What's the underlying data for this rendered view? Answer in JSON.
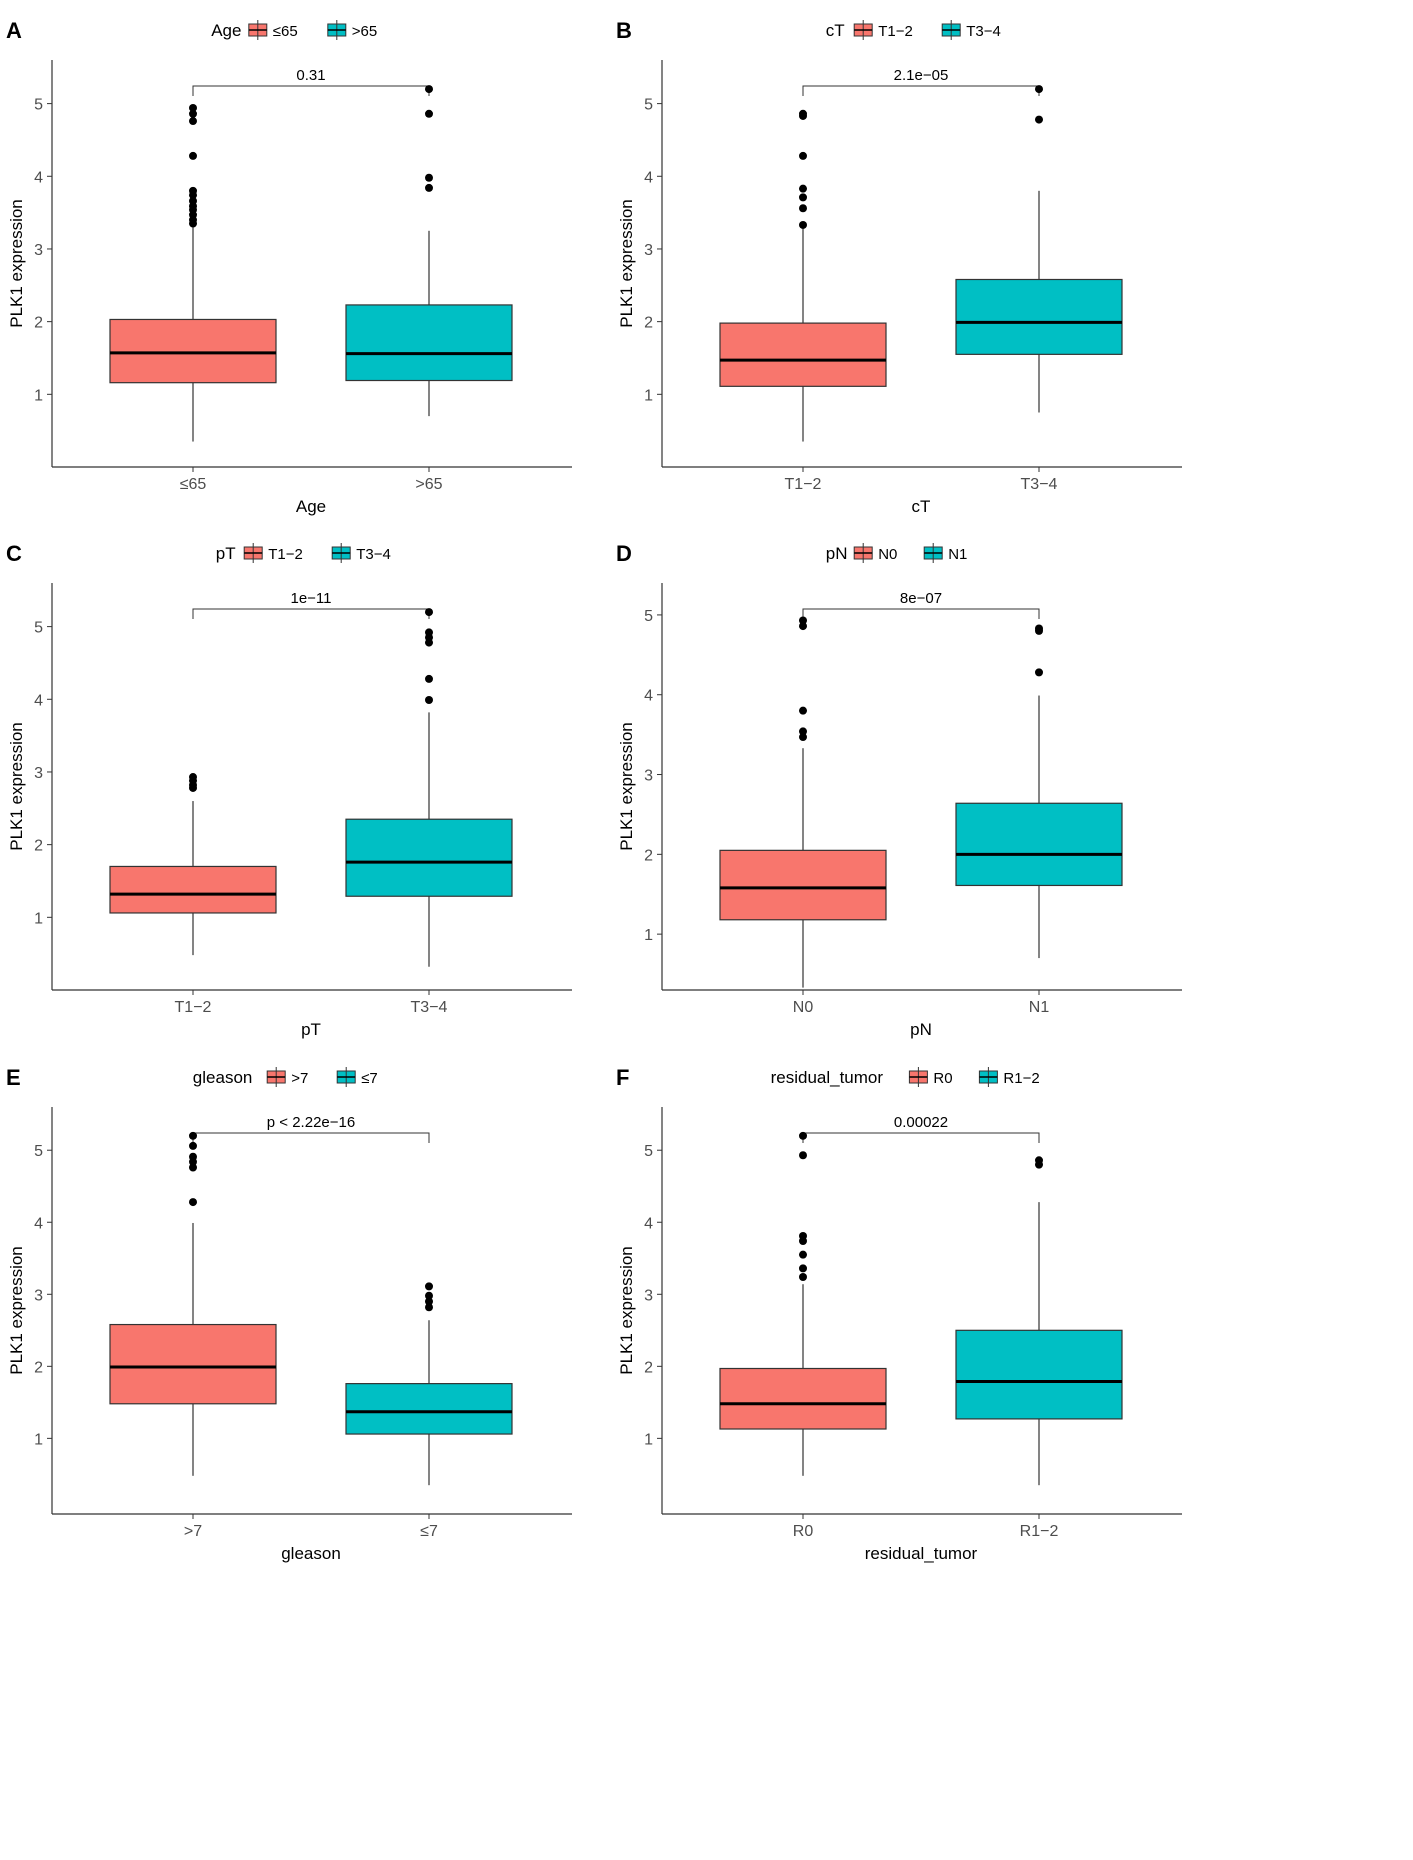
{
  "colors": {
    "low_group": "#F8766D",
    "high_group": "#00BFC4",
    "ink": "#000000",
    "axis": "#333333"
  },
  "chart_data": [
    {
      "panel_label": "A",
      "type": "box",
      "legend_title": "Age",
      "groups": [
        "≤65",
        ">65"
      ],
      "xlabel": "Age",
      "ylabel": "PLK1 expression",
      "ylim": [
        0.0,
        5.6
      ],
      "yticks": [
        1,
        2,
        3,
        4,
        5
      ],
      "p_value": "0.31",
      "boxes": [
        {
          "category": "≤65",
          "whisker_low": 0.35,
          "q1": 1.16,
          "median": 1.57,
          "q3": 2.03,
          "whisker_high": 3.35,
          "outliers": [
            3.35,
            3.4,
            3.47,
            3.54,
            3.59,
            3.66,
            3.74,
            3.8,
            4.28,
            4.76,
            4.86,
            4.94
          ]
        },
        {
          "category": ">65",
          "whisker_low": 0.7,
          "q1": 1.19,
          "median": 1.56,
          "q3": 2.23,
          "whisker_high": 3.25,
          "outliers": [
            3.84,
            3.98,
            4.86,
            5.2
          ]
        }
      ]
    },
    {
      "panel_label": "B",
      "type": "box",
      "legend_title": "cT",
      "groups": [
        "T1−2",
        "T3−4"
      ],
      "xlabel": "cT",
      "ylabel": "PLK1 expression",
      "ylim": [
        0.0,
        5.6
      ],
      "yticks": [
        1,
        2,
        3,
        4,
        5
      ],
      "p_value": "2.1e−05",
      "boxes": [
        {
          "category": "T1−2",
          "whisker_low": 0.35,
          "q1": 1.11,
          "median": 1.47,
          "q3": 1.98,
          "whisker_high": 3.28,
          "outliers": [
            3.33,
            3.56,
            3.71,
            3.83,
            4.28,
            4.83,
            4.86
          ]
        },
        {
          "category": "T3−4",
          "whisker_low": 0.75,
          "q1": 1.55,
          "median": 1.99,
          "q3": 2.58,
          "whisker_high": 3.8,
          "outliers": [
            4.78,
            5.2
          ]
        }
      ]
    },
    {
      "panel_label": "C",
      "type": "box",
      "legend_title": "pT",
      "groups": [
        "T1−2",
        "T3−4"
      ],
      "xlabel": "pT",
      "ylabel": "PLK1 expression",
      "ylim": [
        0.0,
        5.6
      ],
      "yticks": [
        1,
        2,
        3,
        4,
        5
      ],
      "p_value": "1e−11",
      "boxes": [
        {
          "category": "T1−2",
          "whisker_low": 0.48,
          "q1": 1.06,
          "median": 1.32,
          "q3": 1.7,
          "whisker_high": 2.6,
          "outliers": [
            2.78,
            2.82,
            2.88,
            2.93
          ]
        },
        {
          "category": "T3−4",
          "whisker_low": 0.32,
          "q1": 1.29,
          "median": 1.76,
          "q3": 2.35,
          "whisker_high": 3.82,
          "outliers": [
            3.99,
            4.28,
            4.78,
            4.85,
            4.92,
            5.2
          ]
        }
      ]
    },
    {
      "panel_label": "D",
      "type": "box",
      "legend_title": "pN",
      "groups": [
        "N0",
        "N1"
      ],
      "xlabel": "pN",
      "ylabel": "PLK1 expression",
      "ylim": [
        0.3,
        5.4
      ],
      "yticks": [
        1,
        2,
        3,
        4,
        5
      ],
      "p_value": "8e−07",
      "boxes": [
        {
          "category": "N0",
          "whisker_low": 0.33,
          "q1": 1.18,
          "median": 1.58,
          "q3": 2.05,
          "whisker_high": 3.33,
          "outliers": [
            3.47,
            3.54,
            3.8,
            4.86,
            4.93
          ]
        },
        {
          "category": "N1",
          "whisker_low": 0.7,
          "q1": 1.61,
          "median": 2.0,
          "q3": 2.64,
          "whisker_high": 3.99,
          "outliers": [
            4.28,
            4.8,
            4.83
          ]
        }
      ]
    },
    {
      "panel_label": "E",
      "type": "box",
      "legend_title": "gleason",
      "groups": [
        ">7",
        "≤7"
      ],
      "xlabel": "gleason",
      "ylabel": "PLK1 expression",
      "ylim": [
        -0.05,
        5.6
      ],
      "yticks": [
        1,
        2,
        3,
        4,
        5
      ],
      "p_value": "p < 2.22e−16",
      "boxes": [
        {
          "category": ">7",
          "whisker_low": 0.48,
          "q1": 1.48,
          "median": 1.99,
          "q3": 2.58,
          "whisker_high": 3.99,
          "outliers": [
            4.28,
            4.76,
            4.84,
            4.91,
            5.06,
            5.2
          ]
        },
        {
          "category": "≤7",
          "whisker_low": 0.35,
          "q1": 1.06,
          "median": 1.37,
          "q3": 1.76,
          "whisker_high": 2.64,
          "outliers": [
            2.82,
            2.9,
            2.98,
            3.11
          ]
        }
      ]
    },
    {
      "panel_label": "F",
      "type": "box",
      "legend_title": "residual_tumor",
      "groups": [
        "R0",
        "R1−2"
      ],
      "xlabel": "residual_tumor",
      "ylabel": "PLK1 expression",
      "ylim": [
        -0.05,
        5.6
      ],
      "yticks": [
        1,
        2,
        3,
        4,
        5
      ],
      "p_value": "0.00022",
      "boxes": [
        {
          "category": "R0",
          "whisker_low": 0.48,
          "q1": 1.13,
          "median": 1.48,
          "q3": 1.97,
          "whisker_high": 3.14,
          "outliers": [
            3.24,
            3.36,
            3.55,
            3.74,
            3.81,
            4.93,
            5.2
          ]
        },
        {
          "category": "R1−2",
          "whisker_low": 0.35,
          "q1": 1.27,
          "median": 1.79,
          "q3": 2.5,
          "whisker_high": 4.28,
          "outliers": [
            4.8,
            4.86
          ]
        }
      ]
    }
  ]
}
